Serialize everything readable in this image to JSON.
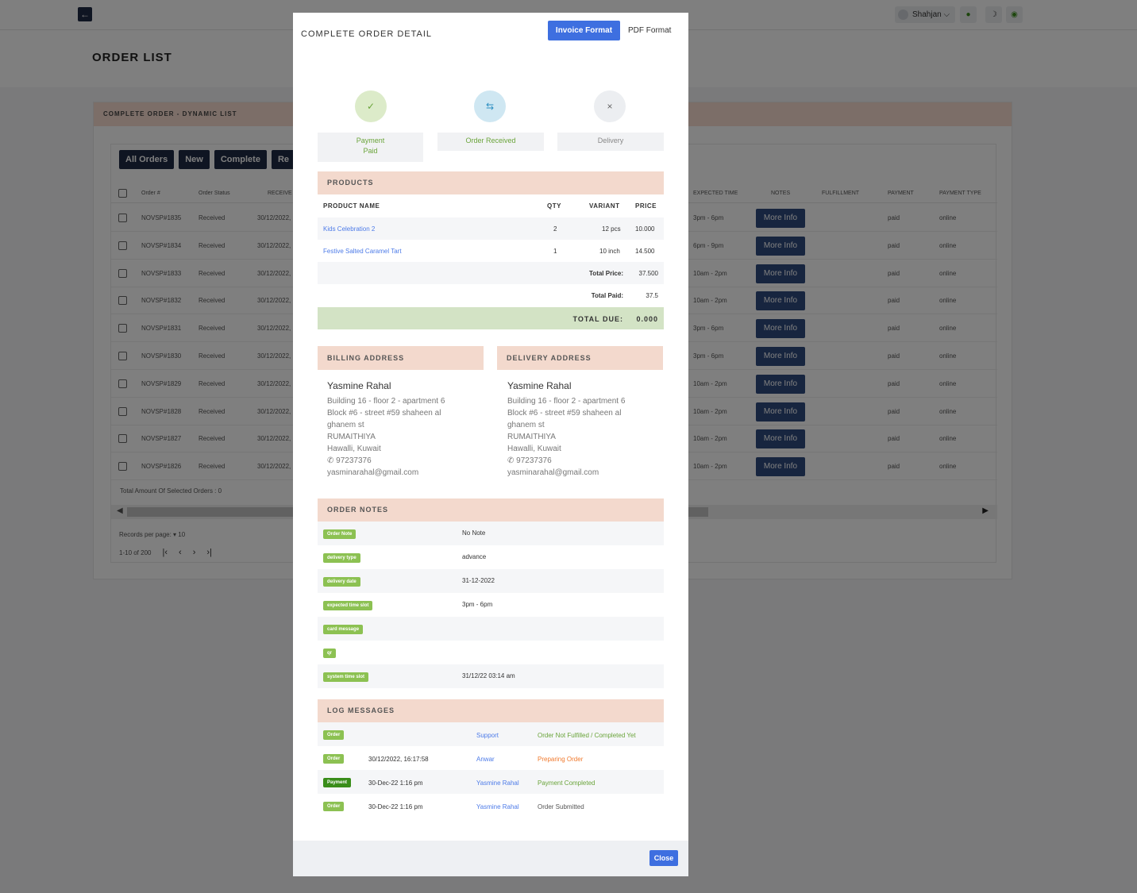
{
  "topbar": {
    "user_name": "Shahjan",
    "user_caret": "⌵",
    "back_icon": "arrow-left-icon",
    "bell_icon": "bell-icon",
    "moon_icon": "moon-icon",
    "power_icon": "power-icon"
  },
  "page": {
    "title": "ORDER LIST",
    "card_title": "COMPLETE ORDER - DYNAMIC LIST",
    "filters": [
      "All Orders",
      "New",
      "Complete",
      "Re"
    ],
    "columns": {
      "order": "Order #",
      "status": "Order Status",
      "received": "RECEIVE",
      "expected": "EXPECTED TIME",
      "notes": "NOTES",
      "fulfillment": "FULFILLMENT",
      "payment": "PAYMENT",
      "payment_type": "PAYMENT TYPE"
    },
    "rows": [
      {
        "order": "NOVSP#1835",
        "status": "Received",
        "date": "30/12/2022,",
        "time": "3pm - 6pm",
        "notes": "More Info",
        "payment": "paid",
        "type": "online"
      },
      {
        "order": "NOVSP#1834",
        "status": "Received",
        "date": "30/12/2022,",
        "time": "6pm - 9pm",
        "notes": "More Info",
        "payment": "paid",
        "type": "online"
      },
      {
        "order": "NOVSP#1833",
        "status": "Received",
        "date": "30/12/2022,",
        "time": "10am - 2pm",
        "notes": "More Info",
        "payment": "paid",
        "type": "online"
      },
      {
        "order": "NOVSP#1832",
        "status": "Received",
        "date": "30/12/2022,",
        "time": "10am - 2pm",
        "notes": "More Info",
        "payment": "paid",
        "type": "online"
      },
      {
        "order": "NOVSP#1831",
        "status": "Received",
        "date": "30/12/2022,",
        "time": "3pm - 6pm",
        "notes": "More Info",
        "payment": "paid",
        "type": "online"
      },
      {
        "order": "NOVSP#1830",
        "status": "Received",
        "date": "30/12/2022,",
        "time": "3pm - 6pm",
        "notes": "More Info",
        "payment": "paid",
        "type": "online"
      },
      {
        "order": "NOVSP#1829",
        "status": "Received",
        "date": "30/12/2022,",
        "time": "10am - 2pm",
        "notes": "More Info",
        "payment": "paid",
        "type": "online"
      },
      {
        "order": "NOVSP#1828",
        "status": "Received",
        "date": "30/12/2022,",
        "time": "10am - 2pm",
        "notes": "More Info",
        "payment": "paid",
        "type": "online"
      },
      {
        "order": "NOVSP#1827",
        "status": "Received",
        "date": "30/12/2022,",
        "time": "10am - 2pm",
        "notes": "More Info",
        "payment": "paid",
        "type": "online"
      },
      {
        "order": "NOVSP#1826",
        "status": "Received",
        "date": "30/12/2022,",
        "time": "10am - 2pm",
        "notes": "More Info",
        "payment": "paid",
        "type": "online"
      }
    ],
    "total_selected": "Total Amount Of Selected Orders : 0",
    "records_per_page": "Records per page: ▾ 10",
    "range": "1-10 of 200",
    "pager_icons": [
      "first-page-icon",
      "prev-page-icon",
      "next-page-icon",
      "last-page-icon"
    ]
  },
  "modal": {
    "title": "COMPLETE ORDER DETAIL",
    "invoice_btn": "Invoice Format",
    "pdf_btn": "PDF Format",
    "steps": [
      {
        "icon": "check-icon",
        "label_1": "Payment",
        "label_2": "Paid",
        "color": "#6aa43a"
      },
      {
        "icon": "exchange-icon",
        "label_1": "Order Received",
        "label_2": "",
        "color": "#6aa43a"
      },
      {
        "icon": "x-icon",
        "label_1": "Delivery",
        "label_2": "",
        "color": "#888888"
      }
    ],
    "products": {
      "header": "PRODUCTS",
      "col_name": "PRODUCT NAME",
      "col_qty": "QTY",
      "col_variant": "VARIANT",
      "col_price": "PRICE",
      "items": [
        {
          "name": "Kids Celebration 2",
          "qty": "2",
          "variant": "12 pcs",
          "price": "10.000"
        },
        {
          "name": "Festive Salted Caramel Tart",
          "qty": "1",
          "variant": "10 inch",
          "price": "14.500"
        }
      ],
      "total_price_label": "Total Price:",
      "total_price": "37.500",
      "total_paid_label": "Total Paid:",
      "total_paid": "37.5",
      "total_due_label": "TOTAL DUE:",
      "total_due": "0.000"
    },
    "billing": {
      "header": "BILLING ADDRESS",
      "name": "Yasmine Rahal",
      "line1": "Building 16 - floor 2 - apartment 6",
      "line2": "Block #6 - street #59 shaheen al",
      "line3": "ghanem st",
      "line4": "RUMAITHIYA",
      "line5": "Hawalli, Kuwait",
      "phone": "97237376",
      "email": "yasminarahal@gmail.com"
    },
    "delivery": {
      "header": "DELIVERY ADDRESS",
      "name": "Yasmine Rahal",
      "line1": "Building 16 - floor 2 - apartment 6",
      "line2": "Block #6 - street #59 shaheen al",
      "line3": "ghanem st",
      "line4": "RUMAITHIYA",
      "line5": "Hawalli, Kuwait",
      "phone": "97237376",
      "email": "yasminarahal@gmail.com"
    },
    "notes": {
      "header": "ORDER NOTES",
      "items": [
        {
          "tag": "Order Note",
          "value": "No Note"
        },
        {
          "tag": "delivery type",
          "value": "advance"
        },
        {
          "tag": "delivery date",
          "value": "31-12-2022"
        },
        {
          "tag": "expected time slot",
          "value": "3pm - 6pm"
        },
        {
          "tag": "card message",
          "value": ""
        },
        {
          "tag": "qr",
          "value": ""
        },
        {
          "tag": "system time slot",
          "value": "31/12/22 03:14 am"
        }
      ]
    },
    "log": {
      "header": "LOG MESSAGES",
      "items": [
        {
          "tag": "Order",
          "date": "",
          "who": "Support",
          "msg": "Order Not Fulfilled / Completed Yet",
          "msg_color": "#6aa43a"
        },
        {
          "tag": "Order",
          "date": "30/12/2022, 16:17:58",
          "who": "Anwar",
          "msg": "Preparing Order",
          "msg_color": "#f07a2e"
        },
        {
          "tag": "Payment",
          "date": "30-Dec-22 1:16 pm",
          "who": "Yasmine Rahal",
          "msg": "Payment Completed",
          "msg_color": "#6aa43a"
        },
        {
          "tag": "Order",
          "date": "30-Dec-22 1:16 pm",
          "who": "Yasmine Rahal",
          "msg": "Order Submitted",
          "msg_color": "#555555"
        }
      ]
    },
    "close_btn": "Close"
  },
  "colors": {
    "primary": "#3e6fe0",
    "navy": "#1f2a44",
    "section_header": "#f3d9cd",
    "tag_green": "#8cc152",
    "due_bg": "#d3e3c5"
  }
}
